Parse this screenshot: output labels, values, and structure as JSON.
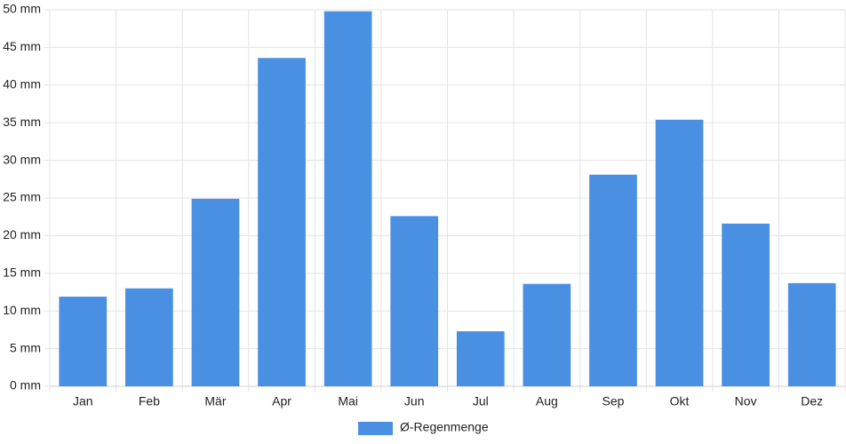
{
  "chart_data": {
    "type": "bar",
    "categories": [
      "Jan",
      "Feb",
      "Mär",
      "Apr",
      "Mai",
      "Jun",
      "Jul",
      "Aug",
      "Sep",
      "Okt",
      "Nov",
      "Dez"
    ],
    "series": [
      {
        "name": "Ø-Regenmenge",
        "color": "#4a90e2",
        "values": [
          11.9,
          13.0,
          24.9,
          43.6,
          49.8,
          22.6,
          7.3,
          13.6,
          28.1,
          35.4,
          21.6,
          13.7
        ]
      }
    ],
    "ylim": [
      0,
      50
    ],
    "yticks": [
      {
        "value": 0,
        "label": "0 mm"
      },
      {
        "value": 5,
        "label": "5 mm"
      },
      {
        "value": 10,
        "label": "10 mm"
      },
      {
        "value": 15,
        "label": "15 mm"
      },
      {
        "value": 20,
        "label": "20 mm"
      },
      {
        "value": 25,
        "label": "25 mm"
      },
      {
        "value": 30,
        "label": "30 mm"
      },
      {
        "value": 35,
        "label": "35 mm"
      },
      {
        "value": 40,
        "label": "40 mm"
      },
      {
        "value": 45,
        "label": "45 mm"
      },
      {
        "value": 50,
        "label": "50 mm"
      }
    ],
    "grid": true,
    "legend": "bottom"
  }
}
